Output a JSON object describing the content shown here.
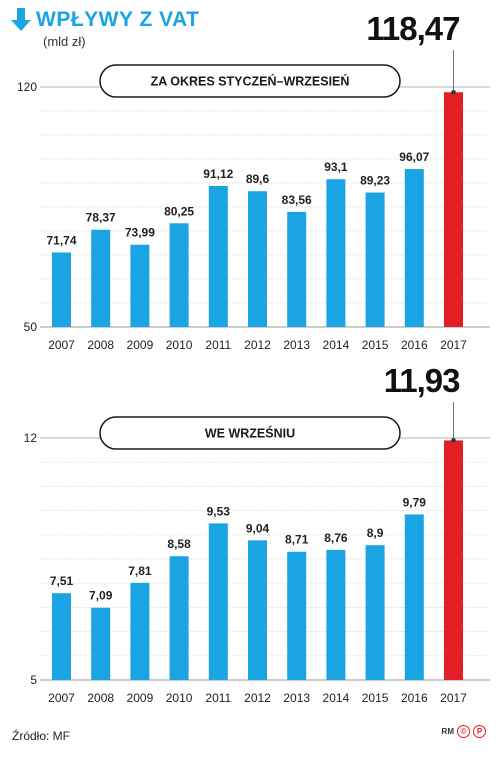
{
  "header": {
    "title": "WPŁYWY Z VAT",
    "subtitle": "(mld zł)",
    "icon": "arrow-down-icon"
  },
  "colors": {
    "bar": "#1ba4e3",
    "highlight_bar": "#e31e24",
    "title": "#1ba4e3"
  },
  "chart_data": [
    {
      "type": "bar",
      "title": "ZA OKRES STYCZEŃ–WRZESIEŃ",
      "categories": [
        "2007",
        "2008",
        "2009",
        "2010",
        "2011",
        "2012",
        "2013",
        "2014",
        "2015",
        "2016",
        "2017"
      ],
      "values": [
        71.74,
        78.37,
        73.99,
        80.25,
        91.12,
        89.6,
        83.56,
        93.1,
        89.23,
        96.07,
        118.47
      ],
      "value_labels": [
        "71,74",
        "78,37",
        "73,99",
        "80,25",
        "91,12",
        "89,6",
        "83,56",
        "93,1",
        "89,23",
        "96,07",
        "118,47"
      ],
      "highlight_index": 10,
      "ylim": [
        50,
        120
      ],
      "yticks": [
        "50",
        "120"
      ],
      "grid": true
    },
    {
      "type": "bar",
      "title": "WE WRZEŚNIU",
      "categories": [
        "2007",
        "2008",
        "2009",
        "2010",
        "2011",
        "2012",
        "2013",
        "2014",
        "2015",
        "2016",
        "2017"
      ],
      "values": [
        7.51,
        7.09,
        7.81,
        8.58,
        9.53,
        9.04,
        8.71,
        8.76,
        8.9,
        9.79,
        11.93
      ],
      "value_labels": [
        "7,51",
        "7,09",
        "7,81",
        "8,58",
        "9,53",
        "9,04",
        "8,71",
        "8,76",
        "8,9",
        "9,79",
        "11,93"
      ],
      "highlight_index": 10,
      "ylim": [
        5,
        12
      ],
      "yticks": [
        "5",
        "12"
      ],
      "grid": true
    }
  ],
  "footer": {
    "source": "Źródło: MF",
    "brand_initials": "RM",
    "brand_mark": "P"
  }
}
